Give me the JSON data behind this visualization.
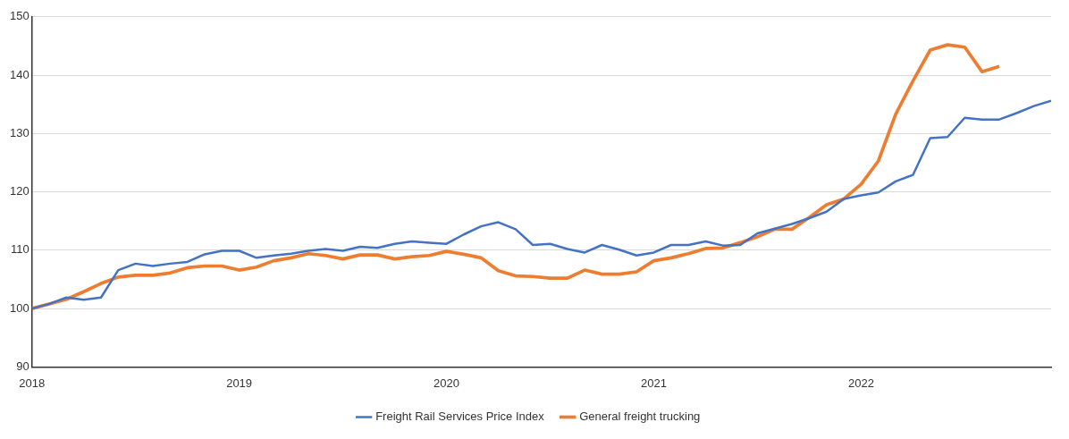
{
  "chart_data": {
    "type": "line",
    "x": [
      "2018-01",
      "2018-02",
      "2018-03",
      "2018-04",
      "2018-05",
      "2018-06",
      "2018-07",
      "2018-08",
      "2018-09",
      "2018-10",
      "2018-11",
      "2018-12",
      "2019-01",
      "2019-02",
      "2019-03",
      "2019-04",
      "2019-05",
      "2019-06",
      "2019-07",
      "2019-08",
      "2019-09",
      "2019-10",
      "2019-11",
      "2019-12",
      "2020-01",
      "2020-02",
      "2020-03",
      "2020-04",
      "2020-05",
      "2020-06",
      "2020-07",
      "2020-08",
      "2020-09",
      "2020-10",
      "2020-11",
      "2020-12",
      "2021-01",
      "2021-02",
      "2021-03",
      "2021-04",
      "2021-05",
      "2021-06",
      "2021-07",
      "2021-08",
      "2021-09",
      "2021-10",
      "2021-11",
      "2021-12",
      "2022-01",
      "2022-02",
      "2022-03",
      "2022-04",
      "2022-05",
      "2022-06",
      "2022-07",
      "2022-08",
      "2022-09",
      "2022-10",
      "2022-11",
      "2022-12"
    ],
    "series": [
      {
        "name": "Freight Rail Services Price Index",
        "color": "#4472c4",
        "values": [
          100,
          100.8,
          101.9,
          101.5,
          101.9,
          106.6,
          107.7,
          107.3,
          107.7,
          108.0,
          109.3,
          109.9,
          109.9,
          108.7,
          109.1,
          109.4,
          109.9,
          110.2,
          109.9,
          110.6,
          110.4,
          111.1,
          111.5,
          111.3,
          111.1,
          112.7,
          114.1,
          114.8,
          113.6,
          110.9,
          111.1,
          110.2,
          109.6,
          110.9,
          110.1,
          109.1,
          109.6,
          110.9,
          110.9,
          111.5,
          110.8,
          110.9,
          112.9,
          113.7,
          114.5,
          115.5,
          116.6,
          118.8,
          119.4,
          119.9,
          121.8,
          122.9,
          129.2,
          129.4,
          132.7,
          132.4,
          132.4,
          133.5,
          134.7,
          135.6
        ]
      },
      {
        "name": "General freight trucking",
        "color": "#ed7d31",
        "x": [
          "2018-01",
          "2018-02",
          "2018-03",
          "2018-04",
          "2018-05",
          "2018-06",
          "2018-07",
          "2018-08",
          "2018-09",
          "2018-10",
          "2018-11",
          "2018-12",
          "2019-01",
          "2019-02",
          "2019-03",
          "2019-04",
          "2019-05",
          "2019-06",
          "2019-07",
          "2019-08",
          "2019-09",
          "2019-10",
          "2019-11",
          "2019-12",
          "2020-01",
          "2020-02",
          "2020-03",
          "2020-04",
          "2020-05",
          "2020-06",
          "2020-07",
          "2020-08",
          "2020-09",
          "2020-10",
          "2020-11",
          "2020-12",
          "2021-01",
          "2021-02",
          "2021-03",
          "2021-04",
          "2021-05",
          "2021-06",
          "2021-07",
          "2021-08",
          "2021-09",
          "2021-10",
          "2021-11",
          "2021-12",
          "2022-01",
          "2022-02",
          "2022-03",
          "2022-04",
          "2022-05",
          "2022-06",
          "2022-07",
          "2022-08",
          "2022-09"
        ],
        "values": [
          100,
          100.8,
          101.6,
          102.9,
          104.3,
          105.4,
          105.7,
          105.7,
          106.1,
          107.0,
          107.3,
          107.3,
          106.6,
          107.1,
          108.2,
          108.7,
          109.4,
          109.1,
          108.5,
          109.2,
          109.2,
          108.5,
          108.9,
          109.1,
          109.8,
          109.3,
          108.7,
          106.5,
          105.6,
          105.5,
          105.2,
          105.2,
          106.6,
          105.9,
          105.9,
          106.3,
          108.2,
          108.7,
          109.4,
          110.3,
          110.4,
          111.3,
          112.3,
          113.6,
          113.6,
          115.6,
          117.8,
          118.8,
          121.3,
          125.3,
          133.3,
          139.0,
          144.3,
          145.2,
          144.8,
          140.6,
          141.5
        ]
      }
    ],
    "xlim": [
      "2018-01",
      "2022-12"
    ],
    "xticks": [
      "2018",
      "2019",
      "2020",
      "2021",
      "2022"
    ],
    "ylim": [
      90,
      150
    ],
    "yticks": [
      90,
      100,
      110,
      120,
      130,
      140,
      150
    ],
    "grid": "y",
    "legend": "bottom",
    "marker": "none",
    "line_style": "solid"
  }
}
